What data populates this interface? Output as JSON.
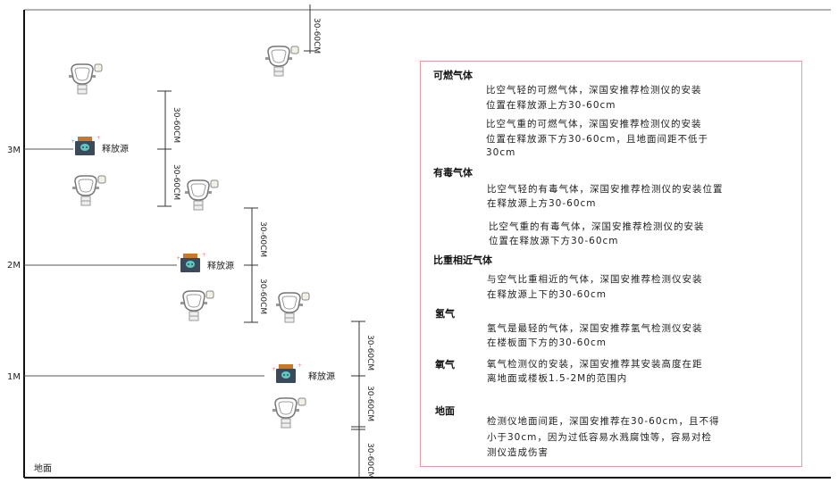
{
  "levels": {
    "l3": "3M",
    "l2": "2M",
    "l1": "1M"
  },
  "ground_label": "地面",
  "source_label": "释放源",
  "dimension_label": "30-60CM",
  "notes": {
    "combustible": {
      "title": "可燃气体",
      "p1": [
        "比空气轻的可燃气体，深国安推荐检测仪的安装",
        "位置在释放源上方30-60cm"
      ],
      "p2": [
        "比空气重的可燃气体，深国安推荐检测仪的安装",
        "位置在释放源下方30-60cm，且地面间距不低于",
        "30cm"
      ]
    },
    "toxic": {
      "title": "有毒气体",
      "p1": [
        "比空气轻的有毒气体，深国安推荐检测仪的安装位置",
        "在释放源上方30-60cm"
      ],
      "p2": [
        "比空气重的有毒气体，深国安推荐检测仪的安装",
        "位置在释放源下方30-60cm"
      ]
    },
    "similar": {
      "title": "比重相近气体",
      "p1": [
        "与空气比重相近的气体，深国安推荐检测仪安装",
        "在释放源上下的30-60cm"
      ]
    },
    "hydrogen": {
      "title": "氢气",
      "p1": [
        "氢气是最轻的气体，深国安推荐氢气检测仪安装",
        "在楼板面下方的30-60cm"
      ]
    },
    "oxygen": {
      "title": "氧气",
      "p1": [
        "氧气检测仪的安装，深国安推荐其安装高度在距",
        "离地面或楼板1.5-2M的范围内"
      ]
    },
    "ground": {
      "title": "地面",
      "p1": [
        "检测仪地面间距，深国安推荐在30-60cm，且不得",
        "小于30cm，因为过低容易水溅腐蚀等，容易对检",
        "测仪造成伤害"
      ]
    }
  },
  "colors": {
    "box_border": "#e89aa0",
    "source_body": "#3a4a5a",
    "source_cap": "#c8782a",
    "source_face": "#5fc9c0"
  }
}
